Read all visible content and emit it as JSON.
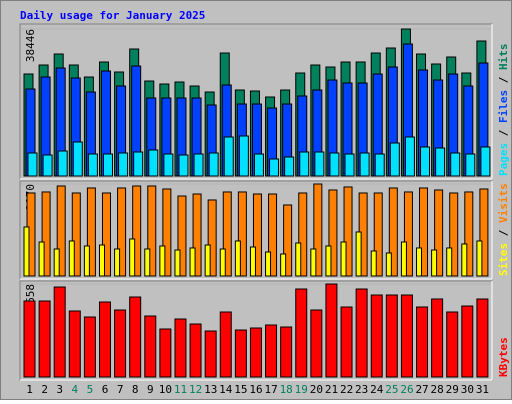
{
  "chart_data": {
    "type": "bar",
    "title": "Daily usage for January 2025",
    "categories": [
      "1",
      "2",
      "3",
      "4",
      "5",
      "6",
      "7",
      "8",
      "9",
      "10",
      "11",
      "12",
      "13",
      "14",
      "15",
      "16",
      "17",
      "18",
      "19",
      "20",
      "21",
      "22",
      "23",
      "24",
      "25",
      "26",
      "27",
      "28",
      "29",
      "30",
      "31"
    ],
    "category_colors": [
      "#000000",
      "#000000",
      "#000000",
      "#00805c",
      "#00805c",
      "#000000",
      "#000000",
      "#000000",
      "#000000",
      "#000000",
      "#00805c",
      "#00805c",
      "#000000",
      "#000000",
      "#000000",
      "#000000",
      "#000000",
      "#00805c",
      "#00805c",
      "#000000",
      "#000000",
      "#000000",
      "#000000",
      "#000000",
      "#00805c",
      "#00805c",
      "#000000",
      "#000000",
      "#000000",
      "#000000",
      "#000000"
    ],
    "panels": [
      {
        "ylim": [
          0,
          38446
        ],
        "yticks": [
          38446
        ],
        "series": [
          {
            "name": "Hits",
            "color": "#00805c",
            "values": [
              26676,
              29030,
              31906,
              29030,
              25892,
              29815,
              27200,
              33215,
              24846,
              24062,
              24584,
              23538,
              21969,
              32169,
              22492,
              22231,
              20661,
              22492,
              26938,
              29030,
              28508,
              29815,
              29815,
              32169,
              33477,
              38446,
              31906,
              29292,
              31123,
              26938,
              35307
            ]
          },
          {
            "name": "Files",
            "color": "#0040ff",
            "values": [
              22751,
              25889,
              28242,
              25627,
              21966,
              27458,
              23535,
              28765,
              20397,
              20397,
              20397,
              20397,
              18567,
              23797,
              18828,
              18828,
              17782,
              18828,
              20920,
              22489,
              25104,
              24320,
              24320,
              26673,
              28504,
              34518,
              27719,
              25104,
              26673,
              23535,
              29550
            ]
          },
          {
            "name": "Pages",
            "color": "#00e0ff",
            "values": [
              6015,
              5492,
              6538,
              8891,
              5753,
              5753,
              6015,
              6276,
              6799,
              5753,
              5492,
              5753,
              6015,
              10199,
              10460,
              5753,
              4446,
              4969,
              6276,
              6276,
              6015,
              5753,
              6015,
              5753,
              8630,
              10199,
              7584,
              7322,
              6015,
              5753,
              7584
            ]
          }
        ]
      },
      {
        "ylim": [
          0,
          2170
        ],
        "yticks": [
          2170
        ],
        "series": [
          {
            "name": "Visits",
            "color": "#ff8000",
            "values": [
              1958,
              1982,
              2123,
              1958,
              2076,
              1958,
              2076,
              2123,
              2123,
              2052,
              1887,
              1934,
              1793,
              1982,
              1982,
              1934,
              1934,
              1675,
              1958,
              2170,
              2029,
              2100,
              1958,
              1958,
              2076,
              1982,
              2076,
              2029,
              1958,
              1982,
              2052
            ]
          },
          {
            "name": "Sites",
            "color": "#ffff00",
            "values": [
              1156,
              802,
              637,
              826,
              708,
              731,
              637,
              873,
              637,
              708,
              613,
              661,
              731,
              637,
              826,
              684,
              566,
              519,
              778,
              637,
              708,
              802,
              1038,
              590,
              543,
              802,
              661,
              613,
              661,
              755,
              826
            ]
          }
        ]
      },
      {
        "ylim": [
          0,
          15853658
        ],
        "yticks": [
          15853658
        ],
        "series": [
          {
            "name": "KBytes",
            "color": "#ff0000",
            "values": [
              12955644,
              12955644,
              15342210,
              11250954,
              10228140,
              12785175,
              11421423,
              13637520,
              10398609,
              8182512,
              9887202,
              9034857,
              7841574,
              11080485,
              8012043,
              8352981,
              8864388,
              8523450,
              15001272,
              11421423,
              15853658,
              11932830,
              15001272,
              13978458,
              13978458,
              13978458,
              11932830,
              13296582,
              11080485,
              12103299,
              13296582
            ]
          }
        ]
      }
    ]
  }
}
